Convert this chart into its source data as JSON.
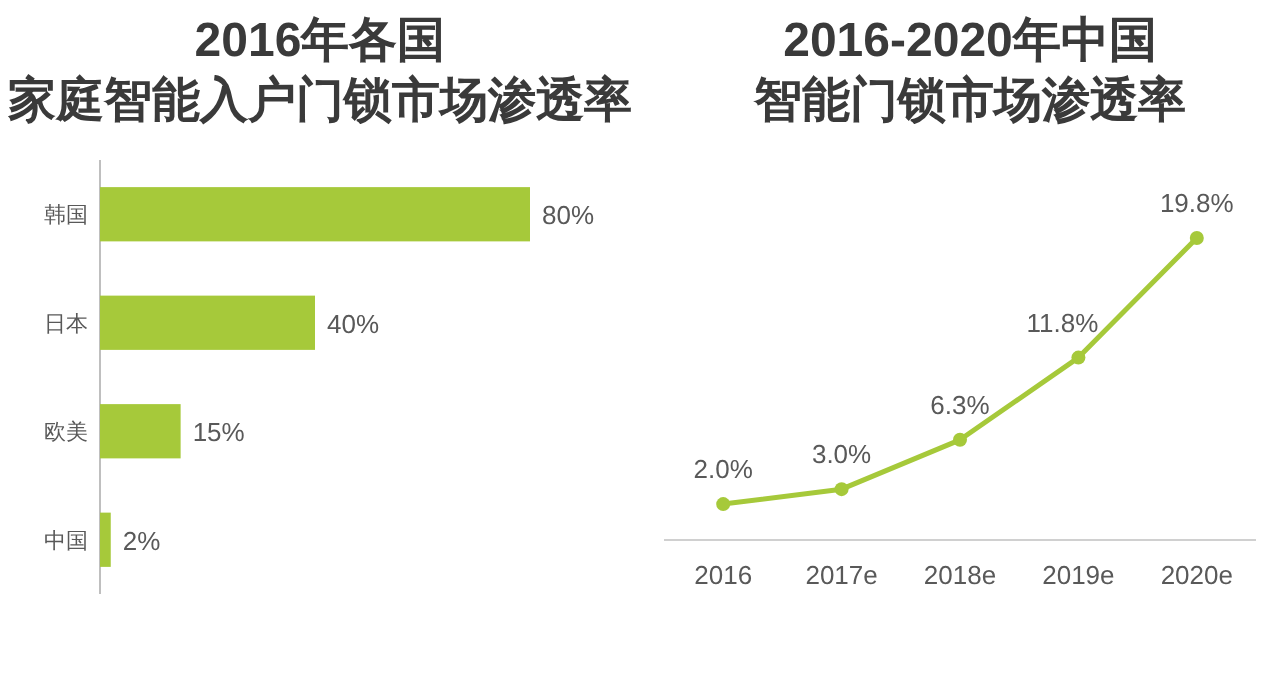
{
  "chart_data": [
    {
      "type": "bar",
      "orientation": "horizontal",
      "title": "2016年各国",
      "subtitle": "家庭智能入户门锁市场渗透率",
      "categories": [
        "韩国",
        "日本",
        "欧美",
        "中国"
      ],
      "values": [
        80,
        40,
        15,
        2
      ],
      "value_labels": [
        "80%",
        "40%",
        "15%",
        "2%"
      ],
      "color": "#a6c93a"
    },
    {
      "type": "line",
      "title": "2016-2020年中国",
      "subtitle": "智能门锁市场渗透率",
      "categories": [
        "2016",
        "2017e",
        "2018e",
        "2019e",
        "2020e"
      ],
      "values": [
        2.0,
        3.0,
        6.3,
        11.8,
        19.8
      ],
      "value_labels": [
        "2.0%",
        "3.0%",
        "6.3%",
        "11.8%",
        "19.8%"
      ],
      "color": "#a6c93a",
      "marker": "circle"
    }
  ]
}
